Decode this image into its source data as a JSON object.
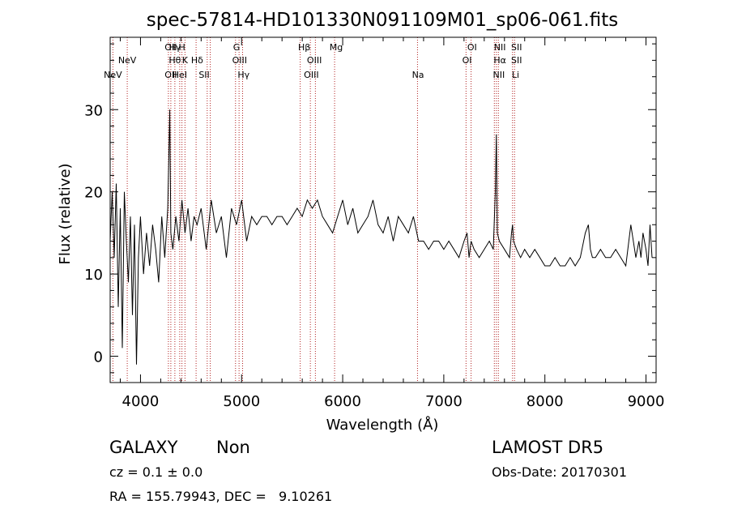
{
  "chart_data": {
    "type": "line",
    "title": "spec-57814-HD101330N091109M01_sp06-061.fits",
    "xlabel": "Wavelength (Å)",
    "ylabel": "Flux (relative)",
    "xlim": [
      3700,
      9100
    ],
    "ylim": [
      -3.2,
      38.8
    ],
    "x_ticks": [
      4000,
      5000,
      6000,
      7000,
      8000,
      9000
    ],
    "y_ticks": [
      0,
      10,
      20,
      30
    ],
    "grid": false,
    "series": [
      {
        "x": [
          3700,
          3720,
          3740,
          3760,
          3780,
          3800,
          3820,
          3840,
          3860,
          3880,
          3900,
          3920,
          3940,
          3960,
          3980,
          4000,
          4030,
          4060,
          4090,
          4120,
          4150,
          4180,
          4210,
          4240,
          4270,
          4290,
          4300,
          4320,
          4350,
          4380,
          4410,
          4440,
          4470,
          4500,
          4530,
          4560,
          4600,
          4650,
          4700,
          4750,
          4800,
          4850,
          4900,
          4950,
          5000,
          5050,
          5100,
          5150,
          5200,
          5250,
          5300,
          5350,
          5400,
          5450,
          5500,
          5550,
          5600,
          5650,
          5700,
          5750,
          5800,
          5850,
          5900,
          5950,
          6000,
          6050,
          6100,
          6150,
          6200,
          6250,
          6300,
          6350,
          6400,
          6450,
          6500,
          6550,
          6600,
          6650,
          6700,
          6750,
          6800,
          6850,
          6900,
          6950,
          7000,
          7050,
          7100,
          7150,
          7200,
          7230,
          7250,
          7270,
          7300,
          7350,
          7400,
          7450,
          7490,
          7510,
          7520,
          7530,
          7550,
          7600,
          7650,
          7670,
          7680,
          7690,
          7720,
          7760,
          7800,
          7850,
          7900,
          7950,
          8000,
          8050,
          8100,
          8150,
          8200,
          8250,
          8300,
          8350,
          8400,
          8430,
          8450,
          8470,
          8500,
          8550,
          8600,
          8650,
          8700,
          8750,
          8800,
          8850,
          8900,
          8930,
          8950,
          8970,
          9000,
          9020,
          9040,
          9060
        ],
        "y": [
          14,
          20,
          12,
          21,
          6,
          18,
          1,
          20,
          14,
          9,
          17,
          5,
          16,
          -1,
          12,
          17,
          10,
          15,
          11,
          16,
          13,
          9,
          17,
          12,
          18,
          30,
          15,
          13,
          17,
          14,
          19,
          15,
          18,
          14,
          17,
          16,
          18,
          13,
          19,
          15,
          17,
          12,
          18,
          16,
          19,
          14,
          17,
          16,
          17,
          17,
          16,
          17,
          17,
          16,
          17,
          18,
          17,
          19,
          18,
          19,
          17,
          16,
          15,
          17,
          19,
          16,
          18,
          15,
          16,
          17,
          19,
          16,
          15,
          17,
          14,
          17,
          16,
          15,
          17,
          14,
          14,
          13,
          14,
          14,
          13,
          14,
          13,
          12,
          14,
          15,
          12,
          14,
          13,
          12,
          13,
          14,
          13,
          20,
          27,
          15,
          14,
          13,
          12,
          15,
          16,
          14,
          13,
          12,
          13,
          12,
          13,
          12,
          11,
          11,
          12,
          11,
          11,
          12,
          11,
          12,
          15,
          16,
          13,
          12,
          12,
          13,
          12,
          12,
          13,
          12,
          11,
          16,
          12,
          14,
          12,
          15,
          13,
          11,
          16,
          12
        ]
      }
    ],
    "line_labels": [
      {
        "wave": 3727,
        "label": "NeV",
        "row": 3
      },
      {
        "wave": 3869,
        "label": "NeV",
        "row": 2
      },
      {
        "wave": 4300,
        "label": "OII",
        "row": 1
      },
      {
        "wave": 4300,
        "label": "OII",
        "row": 3
      },
      {
        "wave": 4340,
        "label": "Hγ",
        "row": 1
      },
      {
        "wave": 4340,
        "label": "Hθ",
        "row": 2
      },
      {
        "wave": 4388,
        "label": "HeI",
        "row": 3
      },
      {
        "wave": 4410,
        "label": "H",
        "row": 1
      },
      {
        "wave": 4440,
        "label": "K",
        "row": 2
      },
      {
        "wave": 4560,
        "label": "Hδ",
        "row": 2
      },
      {
        "wave": 4630,
        "label": "SII",
        "row": 3
      },
      {
        "wave": 4950,
        "label": "G",
        "row": 1
      },
      {
        "wave": 4980,
        "label": "OIII",
        "row": 2
      },
      {
        "wave": 5020,
        "label": "Hγ",
        "row": 3
      },
      {
        "wave": 5620,
        "label": "Hβ",
        "row": 1
      },
      {
        "wave": 5720,
        "label": "OIII",
        "row": 2
      },
      {
        "wave": 5690,
        "label": "OIII",
        "row": 3
      },
      {
        "wave": 5935,
        "label": "Mg",
        "row": 1
      },
      {
        "wave": 6745,
        "label": "Na",
        "row": 3
      },
      {
        "wave": 7280,
        "label": "OI",
        "row": 1
      },
      {
        "wave": 7230,
        "label": "OI",
        "row": 2
      },
      {
        "wave": 7555,
        "label": "NII",
        "row": 1
      },
      {
        "wave": 7555,
        "label": "Hα",
        "row": 2
      },
      {
        "wave": 7545,
        "label": "NII",
        "row": 3
      },
      {
        "wave": 7720,
        "label": "SII",
        "row": 1
      },
      {
        "wave": 7720,
        "label": "SII",
        "row": 2
      },
      {
        "wave": 7710,
        "label": "Li",
        "row": 3
      }
    ],
    "marker_lines": [
      3727,
      3869,
      4276,
      4300,
      4340,
      4388,
      4410,
      4440,
      4550,
      4660,
      4690,
      4940,
      4975,
      5010,
      5580,
      5680,
      5730,
      5920,
      6740,
      7220,
      7270,
      7500,
      7520,
      7540,
      7680,
      7700
    ],
    "marker_color": "#b22222"
  },
  "info": {
    "object_type": "GALAXY",
    "subclass": "Non",
    "cz": "cz = 0.1 ± 0.0",
    "coords": "RA = 155.79943, DEC =   9.10261",
    "survey": "LAMOST DR5",
    "obs_date": "Obs-Date: 20170301"
  }
}
